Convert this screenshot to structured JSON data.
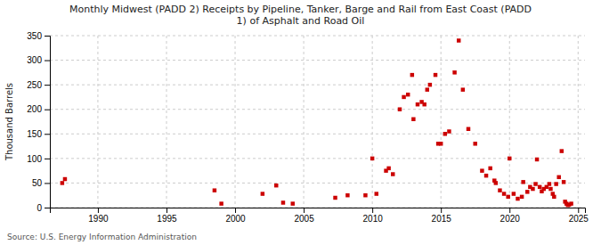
{
  "chart_data": {
    "type": "scatter",
    "title": "Monthly Midwest (PADD 2) Receipts by Pipeline, Tanker, Barge and Rail from East Coast (PADD\n1) of Asphalt and Road Oil",
    "ylabel": "Thousand Barrels",
    "annotations": [
      "Source: U.S. Energy Information Administration"
    ],
    "color": "#cc0000",
    "marker": "square",
    "grid": true,
    "xlim": [
      1986.5,
      2025.5
    ],
    "ylim": [
      0,
      350
    ],
    "xticks": [
      1990,
      1995,
      2000,
      2005,
      2010,
      2015,
      2020,
      2025
    ],
    "yticks": [
      0,
      50,
      100,
      150,
      200,
      250,
      300,
      350
    ],
    "x": [
      1987.4,
      1987.6,
      1998.5,
      1999.0,
      2002.0,
      2003.0,
      2003.5,
      2004.2,
      2007.3,
      2008.2,
      2009.5,
      2010.0,
      2010.3,
      2011.0,
      2011.2,
      2011.5,
      2012.0,
      2012.3,
      2012.6,
      2012.9,
      2013.0,
      2013.3,
      2013.6,
      2013.8,
      2014.0,
      2014.2,
      2014.6,
      2014.8,
      2015.0,
      2015.3,
      2015.6,
      2016.0,
      2016.3,
      2016.6,
      2017.0,
      2017.5,
      2018.0,
      2018.3,
      2018.6,
      2018.9,
      2019.0,
      2019.3,
      2019.6,
      2019.9,
      2020.0,
      2020.3,
      2020.6,
      2020.9,
      2021.0,
      2021.3,
      2021.5,
      2021.7,
      2021.9,
      2022.0,
      2022.2,
      2022.35,
      2022.5,
      2022.7,
      2022.9,
      2023.0,
      2023.15,
      2023.25,
      2023.4,
      2023.6,
      2023.8,
      2023.95,
      2024.05,
      2024.15,
      2024.25,
      2024.35,
      2024.5
    ],
    "values": [
      50,
      58,
      35,
      8,
      28,
      45,
      10,
      8,
      20,
      25,
      25,
      100,
      28,
      75,
      80,
      68,
      200,
      225,
      230,
      270,
      180,
      210,
      215,
      210,
      240,
      250,
      270,
      130,
      130,
      150,
      155,
      275,
      340,
      240,
      160,
      130,
      75,
      65,
      80,
      55,
      50,
      35,
      28,
      22,
      100,
      28,
      18,
      22,
      52,
      32,
      42,
      38,
      48,
      98,
      42,
      33,
      38,
      42,
      48,
      38,
      28,
      22,
      48,
      62,
      115,
      52,
      12,
      8,
      5,
      6,
      8
    ]
  }
}
